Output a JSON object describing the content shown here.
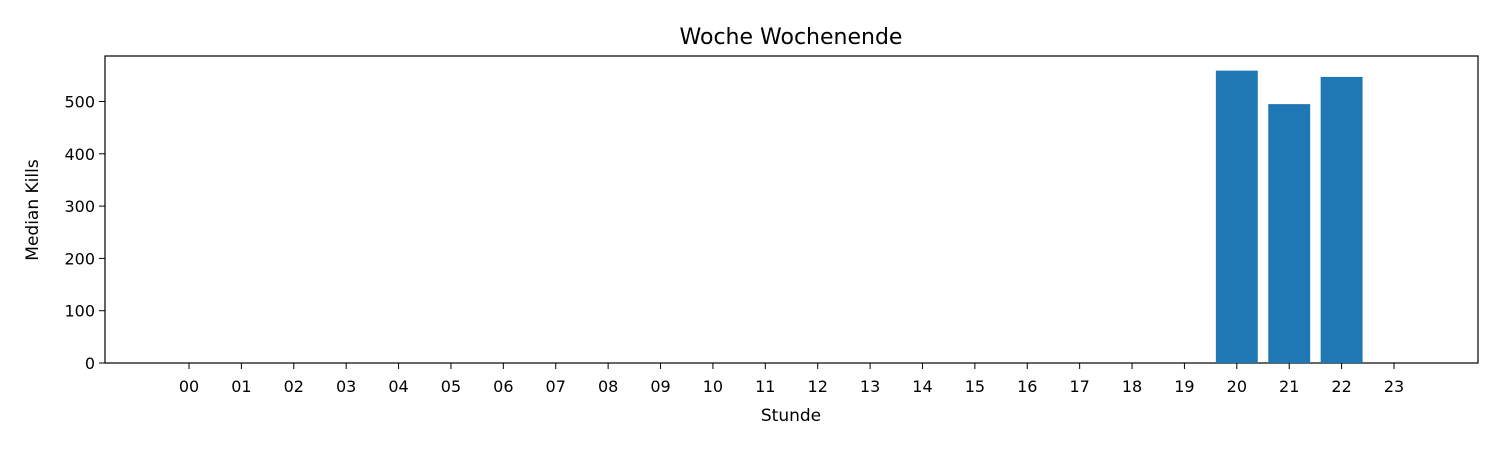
{
  "chart_data": {
    "type": "bar",
    "title": "Woche Wochenende",
    "xlabel": "Stunde",
    "ylabel": "Median Kills",
    "categories": [
      "00",
      "01",
      "02",
      "03",
      "04",
      "05",
      "06",
      "07",
      "08",
      "09",
      "10",
      "11",
      "12",
      "13",
      "14",
      "15",
      "16",
      "17",
      "18",
      "19",
      "20",
      "21",
      "22",
      "23"
    ],
    "values": [
      0,
      0,
      0,
      0,
      0,
      0,
      0,
      0,
      0,
      0,
      0,
      0,
      0,
      0,
      0,
      0,
      0,
      0,
      0,
      0,
      559,
      495,
      547,
      0
    ],
    "ylim": [
      0,
      587
    ],
    "yticks": [
      0,
      100,
      200,
      300,
      400,
      500
    ],
    "grid": false,
    "bar_color": "#1f77b4"
  }
}
